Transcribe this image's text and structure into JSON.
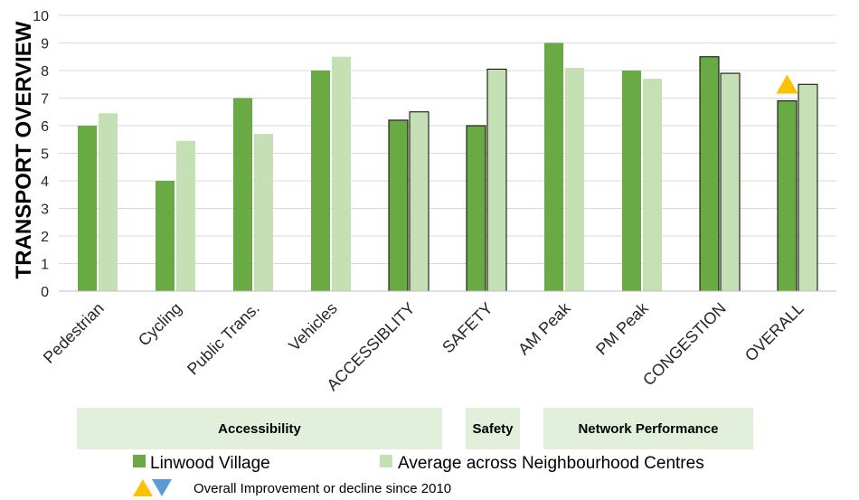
{
  "chart_data": {
    "type": "bar",
    "ylabel": "TRANSPORT OVERVIEW",
    "ylim": [
      0,
      10
    ],
    "yticks": [
      0,
      1,
      2,
      3,
      4,
      5,
      6,
      7,
      8,
      9,
      10
    ],
    "grid": true,
    "categories": [
      "Pedestrian",
      "Cycling",
      "Public Trans.",
      "Vehicles",
      "ACCESSIBLITY",
      "SAFETY",
      "AM Peak",
      "PM Peak",
      "CONGESTION",
      "OVERALL"
    ],
    "summary_categories": [
      "ACCESSIBLITY",
      "SAFETY",
      "CONGESTION",
      "OVERALL"
    ],
    "series": [
      {
        "name": "Linwood Village",
        "color": "#6aaa45",
        "values": [
          6.0,
          4.0,
          7.0,
          8.0,
          6.2,
          6.0,
          9.0,
          8.0,
          8.5,
          6.9
        ]
      },
      {
        "name": "Average across Neighbourhood Centres",
        "color": "#c5e0b4",
        "values": [
          6.45,
          5.45,
          5.7,
          8.5,
          6.5,
          8.05,
          8.1,
          7.7,
          7.9,
          7.5
        ]
      }
    ],
    "groups": [
      {
        "label": "Accessibility",
        "categories": [
          "Pedestrian",
          "Cycling",
          "Public Trans.",
          "Vehicles",
          "ACCESSIBLITY"
        ]
      },
      {
        "label": "Safety",
        "categories": [
          "SAFETY"
        ]
      },
      {
        "label": "Network Performance",
        "categories": [
          "AM Peak",
          "PM Peak",
          "CONGESTION"
        ]
      }
    ],
    "markers": [
      {
        "category": "OVERALL",
        "type": "improvement",
        "color": "#ffc000"
      }
    ],
    "legend": {
      "position": "bottom",
      "marker_note": "Overall Improvement or decline since 2010",
      "improvement_color": "#ffc000",
      "decline_color": "#5b9bd5"
    }
  }
}
